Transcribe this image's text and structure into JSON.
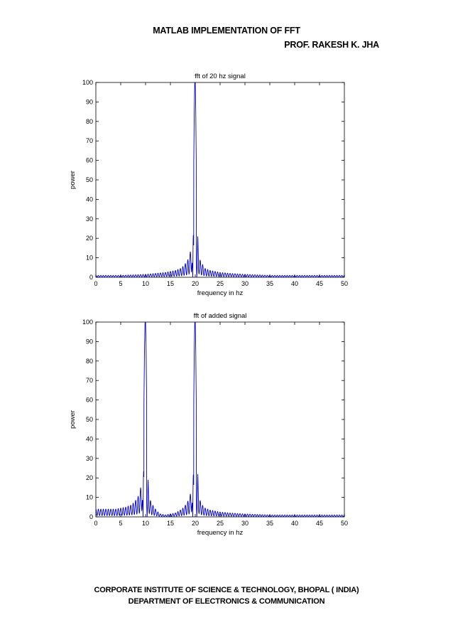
{
  "document": {
    "title": "MATLAB IMPLEMENTATION OF FFT",
    "author": "PROF. RAKESH K. JHA",
    "footer_line1": "CORPORATE INSTITUTE OF SCIENCE & TECHNOLOGY, BHOPAL ( INDIA)",
    "footer_line2": "DEPARTMENT OF ELECTRONICS & COMMUNICATION"
  },
  "colors": {
    "line": "#0000cc",
    "axis": "#000000"
  },
  "chart_data": [
    {
      "type": "line",
      "title": "fft of 20 hz signal",
      "xlabel": "frequency in hz",
      "ylabel": "power",
      "xlim": [
        0,
        50
      ],
      "ylim": [
        0,
        100
      ],
      "xticks": [
        0,
        5,
        10,
        15,
        20,
        25,
        30,
        35,
        40,
        45,
        50
      ],
      "yticks": [
        0,
        10,
        20,
        30,
        40,
        50,
        60,
        70,
        80,
        90,
        100
      ],
      "grid": false,
      "series": [
        {
          "x": [
            0,
            5,
            10,
            12,
            14,
            15,
            16,
            16.5,
            17,
            17.5,
            18,
            18.3,
            18.6,
            18.9,
            19.1,
            19.3,
            19.5,
            19.7,
            19.8,
            19.9,
            20,
            20.1,
            20.2,
            20.3,
            20.5,
            20.7,
            20.9,
            21.1,
            21.4,
            21.7,
            22,
            22.5,
            23,
            24,
            25,
            27,
            30,
            35,
            40,
            45,
            50
          ],
          "y": [
            1,
            1,
            1.5,
            2,
            2.5,
            3,
            3.5,
            4,
            4.5,
            5.5,
            7,
            8,
            9.5,
            12,
            14,
            20.5,
            0,
            60,
            85,
            100,
            100,
            85,
            60,
            0,
            21,
            12,
            9.5,
            8,
            7,
            5.5,
            4.5,
            4,
            3.5,
            3,
            2.5,
            2,
            1.5,
            1,
            1,
            1,
            1
          ]
        }
      ]
    },
    {
      "type": "line",
      "title": "fft of added signal",
      "xlabel": "frequency in hz",
      "ylabel": "power",
      "xlim": [
        0,
        50
      ],
      "ylim": [
        0,
        100
      ],
      "xticks": [
        0,
        5,
        10,
        15,
        20,
        25,
        30,
        35,
        40,
        45,
        50
      ],
      "yticks": [
        0,
        10,
        20,
        30,
        40,
        50,
        60,
        70,
        80,
        90,
        100
      ],
      "grid": false,
      "series": [
        {
          "x": [
            0,
            2,
            4,
            5,
            6,
            7,
            7.5,
            8,
            8.5,
            8.8,
            9.1,
            9.3,
            9.5,
            9.7,
            9.8,
            9.9,
            10,
            10.1,
            10.2,
            10.3,
            10.5,
            10.7,
            10.9,
            11.2,
            11.6,
            12,
            12.5,
            13,
            14,
            15,
            16,
            17,
            17.5,
            18,
            18.5,
            18.8,
            19.1,
            19.3,
            19.5,
            19.7,
            19.8,
            19.9,
            20,
            20.1,
            20.2,
            20.3,
            20.5,
            20.7,
            20.9,
            21.2,
            21.6,
            22,
            23,
            24,
            25,
            27,
            30,
            35,
            40,
            45,
            50
          ],
          "y": [
            4,
            4,
            4,
            4.5,
            5,
            6,
            7,
            8.5,
            10.5,
            12.5,
            16,
            24,
            0,
            65,
            88,
            100,
            100,
            88,
            65,
            0,
            19,
            12,
            9,
            7,
            5.5,
            4,
            2.5,
            1.5,
            1,
            1.5,
            2,
            3.5,
            4.5,
            6,
            8,
            10,
            12.5,
            20,
            0,
            60,
            85,
            100,
            100,
            85,
            60,
            0,
            22,
            12,
            9,
            7,
            5.5,
            4.5,
            3.5,
            3,
            2.5,
            2,
            1.5,
            1,
            1,
            1,
            1
          ]
        }
      ]
    }
  ]
}
